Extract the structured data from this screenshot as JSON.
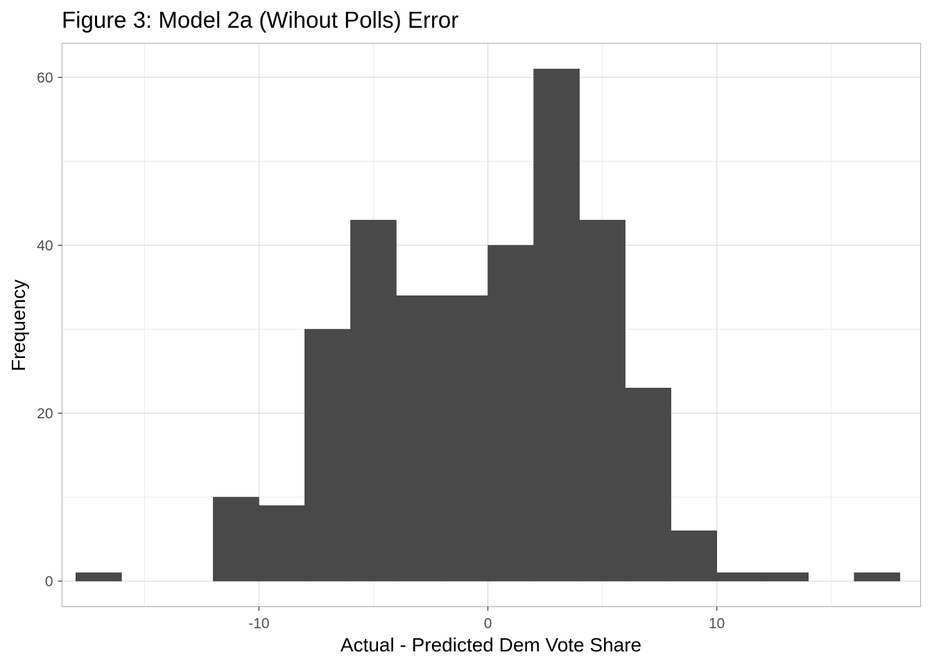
{
  "chart_data": {
    "type": "bar",
    "title": "Figure 3: Model 2a (Wihout Polls) Error",
    "xlabel": "Actual - Predicted Dem Vote Share",
    "ylabel": "Frequency",
    "xlim": [
      -18.6,
      18.9
    ],
    "ylim": [
      -3.05,
      64.05
    ],
    "x_ticks": [
      -10,
      0,
      10
    ],
    "x_tick_labels": [
      "-10",
      "0",
      "10"
    ],
    "y_ticks": [
      0,
      20,
      40,
      60
    ],
    "y_tick_labels": [
      "0",
      "20",
      "40",
      "60"
    ],
    "bin_width": 2,
    "bins": [
      {
        "start": -18,
        "end": -16,
        "count": 1
      },
      {
        "start": -16,
        "end": -14,
        "count": 0
      },
      {
        "start": -14,
        "end": -12,
        "count": 0
      },
      {
        "start": -12,
        "end": -10,
        "count": 10
      },
      {
        "start": -10,
        "end": -8,
        "count": 9
      },
      {
        "start": -8,
        "end": -6,
        "count": 30
      },
      {
        "start": -6,
        "end": -4,
        "count": 43
      },
      {
        "start": -4,
        "end": -2,
        "count": 34
      },
      {
        "start": -2,
        "end": 0,
        "count": 34
      },
      {
        "start": 0,
        "end": 2,
        "count": 40
      },
      {
        "start": 2,
        "end": 4,
        "count": 61
      },
      {
        "start": 4,
        "end": 6,
        "count": 43
      },
      {
        "start": 6,
        "end": 8,
        "count": 23
      },
      {
        "start": 8,
        "end": 10,
        "count": 6
      },
      {
        "start": 10,
        "end": 12,
        "count": 1
      },
      {
        "start": 12,
        "end": 14,
        "count": 1
      },
      {
        "start": 14,
        "end": 16,
        "count": 0
      },
      {
        "start": 16,
        "end": 18,
        "count": 1
      }
    ],
    "bar_color": "#494949",
    "grid": true,
    "legend": "none"
  }
}
